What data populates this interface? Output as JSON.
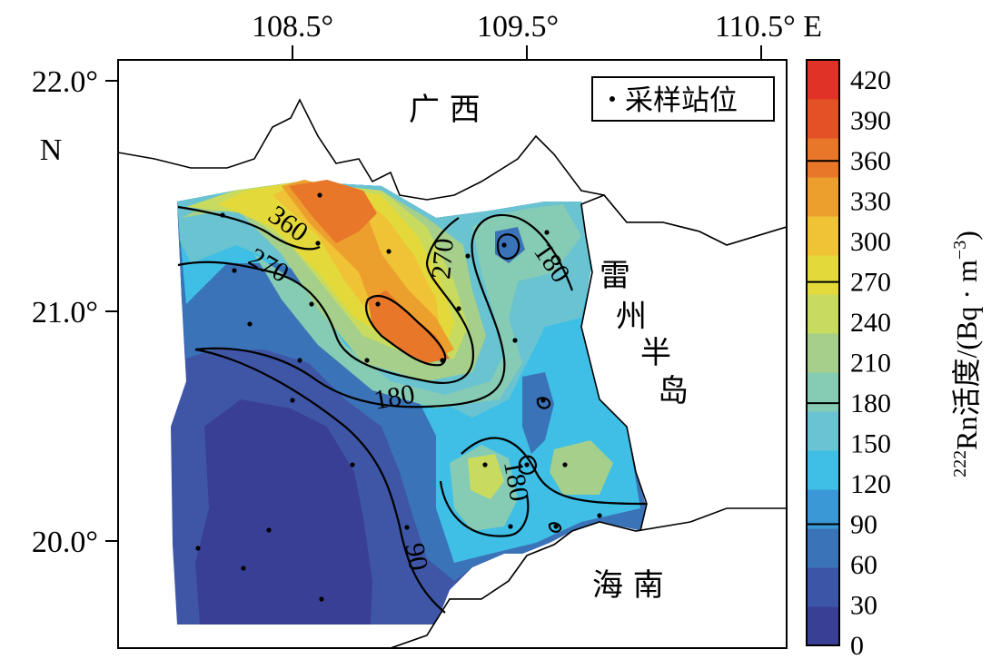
{
  "map": {
    "x_ticks": [
      "108.5°",
      "109.5°",
      "110.5° E"
    ],
    "y_ticks": [
      "22.0°",
      "21.0°",
      "20.0°"
    ],
    "y_hemisphere": "N",
    "region_labels": {
      "guangxi": "广 西",
      "leizhou_1": "雷",
      "leizhou_2": "州",
      "leizhou_3": "半",
      "leizhou_4": "岛",
      "hainan": "海 南"
    },
    "legend": {
      "symbol": "·",
      "text": "采样站位"
    },
    "contour_labels": [
      "360",
      "270",
      "270",
      "180",
      "180",
      "180",
      "90"
    ]
  },
  "colorbar": {
    "title_sup": "222",
    "title_main": "Rn活度/(Bq · m",
    "title_exp": "−3",
    "title_close": ")",
    "ticks": [
      "0",
      "30",
      "60",
      "90",
      "120",
      "150",
      "180",
      "210",
      "240",
      "270",
      "300",
      "330",
      "360",
      "390",
      "420"
    ],
    "colors": [
      "#3a3f96",
      "#3d55a6",
      "#3b73b9",
      "#3a98d6",
      "#3fbfe6",
      "#6ac3d1",
      "#86cbb4",
      "#a5cf8a",
      "#c8db5e",
      "#e3d93b",
      "#f0c236",
      "#ec9f2d",
      "#e8772a",
      "#e35227",
      "#e03226"
    ],
    "contour_line_ticks": [
      "90",
      "180",
      "270",
      "360"
    ]
  },
  "chart_data": {
    "type": "heatmap",
    "variable": "222Rn activity",
    "unit": "Bq·m−3",
    "value_range": [
      0,
      435
    ],
    "contour_levels": [
      90,
      180,
      270,
      360
    ],
    "longitude_ticks": [
      108.5,
      109.5,
      110.5
    ],
    "latitude_ticks": [
      22.0,
      21.0,
      20.0
    ],
    "legend_position": "top-right"
  }
}
